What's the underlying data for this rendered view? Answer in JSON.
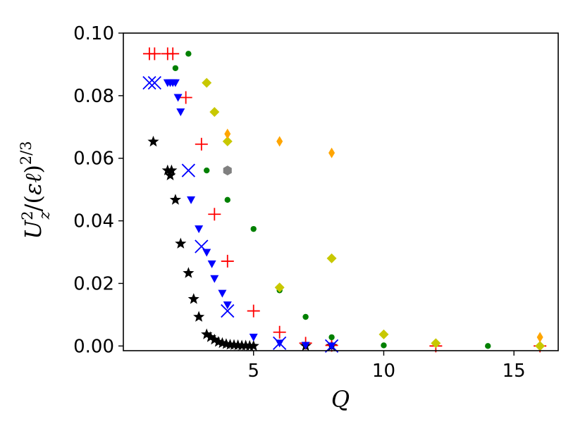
{
  "chart_data": {
    "type": "scatter",
    "xlabel": "Q",
    "ylabel": "U_z^2/(εℓ)^{2/3}",
    "xlim": [
      0.0,
      16.7
    ],
    "ylim": [
      -0.0015,
      0.1
    ],
    "grid": false,
    "x_ticks": [
      {
        "value": 5,
        "label": "5"
      },
      {
        "value": 10,
        "label": "10"
      },
      {
        "value": 15,
        "label": "15"
      }
    ],
    "y_ticks": [
      {
        "value": 0.0,
        "label": "0.00"
      },
      {
        "value": 0.02,
        "label": "0.02"
      },
      {
        "value": 0.04,
        "label": "0.04"
      },
      {
        "value": 0.06,
        "label": "0.06"
      },
      {
        "value": 0.08,
        "label": "0.08"
      },
      {
        "value": 0.1,
        "label": "0.10"
      }
    ],
    "series": [
      {
        "marker": "star",
        "color": "#000000",
        "points": [
          [
            1.15,
            0.0653
          ],
          [
            1.7,
            0.0561
          ],
          [
            1.85,
            0.0561
          ],
          [
            1.8,
            0.0545
          ],
          [
            2.0,
            0.0467
          ],
          [
            2.2,
            0.0327
          ],
          [
            2.5,
            0.0233
          ],
          [
            2.7,
            0.015
          ],
          [
            2.9,
            0.0093
          ],
          [
            3.2,
            0.0037
          ],
          [
            3.35,
            0.0028
          ],
          [
            3.5,
            0.002
          ],
          [
            3.65,
            0.0013
          ],
          [
            3.8,
            0.0009
          ],
          [
            3.95,
            0.0006
          ],
          [
            4.1,
            0.0004
          ],
          [
            4.25,
            0.0003
          ],
          [
            4.4,
            0.0002
          ],
          [
            4.55,
            0.0001
          ],
          [
            4.7,
            0.0001
          ],
          [
            4.85,
            0.0
          ],
          [
            5.0,
            0.0
          ],
          [
            7.0,
            0.0
          ],
          [
            8.0,
            0.0
          ]
        ]
      },
      {
        "marker": "plus",
        "color": "#ff0000",
        "points": [
          [
            1.0,
            0.0934
          ],
          [
            1.2,
            0.0934
          ],
          [
            1.7,
            0.0934
          ],
          [
            1.9,
            0.0934
          ],
          [
            2.4,
            0.0794
          ],
          [
            3.0,
            0.0645
          ],
          [
            3.5,
            0.0421
          ],
          [
            4.0,
            0.0271
          ],
          [
            5.0,
            0.0112
          ],
          [
            6.0,
            0.0044
          ],
          [
            7.0,
            0.0009
          ],
          [
            8.0,
            0.0002
          ],
          [
            12.0,
            0.0
          ],
          [
            16.0,
            0.0
          ]
        ]
      },
      {
        "marker": "triangle-down",
        "color": "#0000ff",
        "points": [
          [
            1.7,
            0.0841
          ],
          [
            1.8,
            0.0841
          ],
          [
            1.9,
            0.0841
          ],
          [
            2.0,
            0.0841
          ],
          [
            2.1,
            0.0794
          ],
          [
            2.2,
            0.0748
          ],
          [
            2.6,
            0.0467
          ],
          [
            2.9,
            0.0374
          ],
          [
            3.2,
            0.0299
          ],
          [
            3.4,
            0.0262
          ],
          [
            3.5,
            0.0215
          ],
          [
            3.8,
            0.0168
          ],
          [
            4.0,
            0.0131
          ],
          [
            5.0,
            0.0028
          ],
          [
            6.0,
            0.0009
          ],
          [
            7.0,
            0.0002
          ],
          [
            8.0,
            0.0
          ]
        ]
      },
      {
        "marker": "x",
        "color": "#0000ff",
        "points": [
          [
            1.0,
            0.0841
          ],
          [
            1.2,
            0.0841
          ],
          [
            2.5,
            0.0561
          ],
          [
            3.0,
            0.0318
          ],
          [
            4.0,
            0.0112
          ],
          [
            6.0,
            0.0009
          ],
          [
            8.0,
            0.0
          ]
        ]
      },
      {
        "marker": "circle",
        "color": "#008000",
        "points": [
          [
            2.5,
            0.0934
          ],
          [
            2.0,
            0.0888
          ],
          [
            3.2,
            0.0561
          ],
          [
            4.0,
            0.0467
          ],
          [
            5.0,
            0.0374
          ],
          [
            6.0,
            0.0178
          ],
          [
            7.0,
            0.0093
          ],
          [
            8.0,
            0.0028
          ],
          [
            10.0,
            0.0002
          ],
          [
            14.0,
            0.0
          ]
        ]
      },
      {
        "marker": "diamond",
        "color": "#c8c800",
        "points": [
          [
            3.2,
            0.0841
          ],
          [
            3.5,
            0.0748
          ],
          [
            4.0,
            0.0654
          ],
          [
            6.0,
            0.0187
          ],
          [
            8.0,
            0.028
          ],
          [
            10.0,
            0.0037
          ],
          [
            12.0,
            0.0009
          ],
          [
            16.0,
            0.0
          ]
        ]
      },
      {
        "marker": "thin-diamond",
        "color": "#ffa500",
        "points": [
          [
            4.0,
            0.0678
          ],
          [
            6.0,
            0.0654
          ],
          [
            8.0,
            0.0617
          ],
          [
            16.0,
            0.0028
          ]
        ]
      },
      {
        "marker": "hexagon",
        "color": "#808080",
        "points": [
          [
            4.0,
            0.0561
          ]
        ]
      }
    ]
  }
}
